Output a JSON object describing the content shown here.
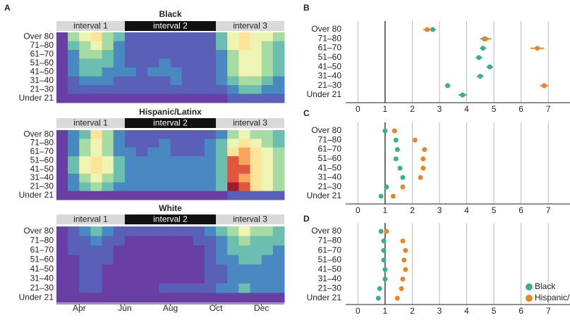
{
  "chart_data": [
    {
      "type": "heatmap",
      "panel": "A",
      "title": "Black",
      "categories": [
        "Over 80",
        "71–80",
        "61–70",
        "51–60",
        "41–50",
        "31–40",
        "21–30",
        "Under 21"
      ],
      "intervals": [
        {
          "label": "interval 1",
          "start": 0,
          "end": 6
        },
        {
          "label": "interval 2",
          "start": 6,
          "end": 14
        },
        {
          "label": "interval 3",
          "start": 14,
          "end": 20
        }
      ],
      "highlight_interval": 1,
      "colorscale": [
        "#6a3fa3",
        "#5a5fb8",
        "#4a88c2",
        "#6cbfb0",
        "#a6dba4",
        "#eef4b2",
        "#fde499",
        "#f8a65d",
        "#e0573d",
        "#9c1b30"
      ],
      "rows": [
        [
          0,
          4,
          5,
          6,
          4,
          3,
          1,
          1,
          1,
          1,
          1,
          1,
          1,
          1,
          3,
          5,
          6,
          5,
          5,
          4
        ],
        [
          0,
          3,
          4,
          5,
          4,
          2,
          1,
          1,
          1,
          1,
          1,
          1,
          1,
          1,
          3,
          5,
          6,
          5,
          4,
          3
        ],
        [
          0,
          2,
          4,
          4,
          3,
          2,
          1,
          1,
          1,
          1,
          1,
          1,
          1,
          1,
          2,
          4,
          5,
          5,
          4,
          3
        ],
        [
          0,
          2,
          3,
          3,
          3,
          2,
          1,
          1,
          1,
          2,
          1,
          1,
          1,
          1,
          2,
          4,
          5,
          5,
          4,
          3
        ],
        [
          0,
          2,
          3,
          3,
          2,
          2,
          2,
          1,
          2,
          2,
          2,
          1,
          1,
          1,
          2,
          4,
          5,
          5,
          4,
          3
        ],
        [
          0,
          1,
          2,
          2,
          2,
          1,
          1,
          1,
          1,
          1,
          2,
          1,
          1,
          1,
          2,
          3,
          4,
          4,
          3,
          2
        ],
        [
          0,
          1,
          1,
          1,
          1,
          1,
          1,
          1,
          1,
          1,
          1,
          1,
          1,
          1,
          1,
          2,
          3,
          3,
          2,
          2
        ],
        [
          0,
          0,
          0,
          0,
          0,
          0,
          0,
          0,
          0,
          0,
          0,
          0,
          0,
          0,
          0,
          1,
          1,
          1,
          1,
          1
        ]
      ]
    },
    {
      "type": "heatmap",
      "title": "Hispanic/Latinx",
      "categories": [
        "Over 80",
        "71–80",
        "61–70",
        "51–60",
        "41–50",
        "31–40",
        "21–30",
        "Under 21"
      ],
      "intervals": [
        {
          "label": "interval 1",
          "start": 0,
          "end": 6
        },
        {
          "label": "interval 2",
          "start": 6,
          "end": 14
        },
        {
          "label": "interval 3",
          "start": 14,
          "end": 20
        }
      ],
      "highlight_interval": 1,
      "colorscale": [
        "#6a3fa3",
        "#5a5fb8",
        "#4a88c2",
        "#6cbfb0",
        "#a6dba4",
        "#eef4b2",
        "#fde499",
        "#f8a65d",
        "#e0573d",
        "#9c1b30"
      ],
      "rows": [
        [
          0,
          2,
          3,
          6,
          4,
          2,
          1,
          1,
          1,
          1,
          1,
          1,
          1,
          1,
          2,
          4,
          5,
          4,
          4,
          3
        ],
        [
          0,
          2,
          4,
          5,
          4,
          2,
          1,
          1,
          1,
          2,
          1,
          1,
          1,
          2,
          3,
          5,
          6,
          5,
          4,
          3
        ],
        [
          0,
          2,
          4,
          5,
          4,
          2,
          2,
          1,
          2,
          2,
          1,
          1,
          1,
          2,
          3,
          6,
          7,
          6,
          5,
          4
        ],
        [
          0,
          3,
          5,
          6,
          5,
          3,
          2,
          2,
          2,
          2,
          2,
          2,
          2,
          2,
          3,
          8,
          7,
          6,
          5,
          4
        ],
        [
          0,
          3,
          5,
          6,
          5,
          3,
          2,
          2,
          2,
          2,
          2,
          2,
          2,
          2,
          3,
          8,
          8,
          6,
          5,
          4
        ],
        [
          0,
          2,
          4,
          5,
          4,
          3,
          2,
          2,
          2,
          2,
          2,
          2,
          2,
          2,
          3,
          8,
          7,
          6,
          5,
          4
        ],
        [
          0,
          2,
          3,
          4,
          3,
          2,
          2,
          2,
          2,
          2,
          2,
          2,
          2,
          2,
          3,
          9,
          8,
          6,
          5,
          4
        ],
        [
          0,
          0,
          0,
          0,
          0,
          0,
          0,
          0,
          0,
          0,
          0,
          0,
          0,
          0,
          0,
          1,
          1,
          1,
          1,
          1
        ]
      ]
    },
    {
      "type": "heatmap",
      "title": "White",
      "categories": [
        "Over 80",
        "71–80",
        "61–70",
        "51–60",
        "41–50",
        "31–40",
        "21–30",
        "Under 21"
      ],
      "intervals": [
        {
          "label": "interval 1",
          "start": 0,
          "end": 6
        },
        {
          "label": "interval 2",
          "start": 6,
          "end": 14
        },
        {
          "label": "interval 3",
          "start": 14,
          "end": 20
        }
      ],
      "highlight_interval": 1,
      "colorscale": [
        "#6a3fa3",
        "#5a5fb8",
        "#4a88c2",
        "#6cbfb0",
        "#a6dba4",
        "#eef4b2",
        "#fde499",
        "#f8a65d",
        "#e0573d",
        "#9c1b30"
      ],
      "xlim": [
        0,
        20
      ],
      "xticks": [
        {
          "value": 2,
          "label": "Apr"
        },
        {
          "value": 6,
          "label": "Jun"
        },
        {
          "value": 10,
          "label": "Aug"
        },
        {
          "value": 14,
          "label": "Oct"
        },
        {
          "value": 18,
          "label": "Dec"
        }
      ],
      "rows": [
        [
          0,
          1,
          2,
          3,
          2,
          1,
          1,
          1,
          1,
          1,
          1,
          1,
          1,
          2,
          3,
          4,
          5,
          4,
          4,
          3
        ],
        [
          0,
          1,
          1,
          2,
          1,
          1,
          0,
          0,
          0,
          0,
          0,
          0,
          1,
          1,
          2,
          3,
          4,
          3,
          3,
          3
        ],
        [
          0,
          1,
          1,
          1,
          1,
          0,
          0,
          0,
          0,
          0,
          0,
          0,
          0,
          1,
          2,
          3,
          3,
          3,
          3,
          2
        ],
        [
          0,
          0,
          1,
          1,
          1,
          0,
          0,
          0,
          0,
          0,
          0,
          0,
          0,
          1,
          2,
          2,
          3,
          3,
          2,
          2
        ],
        [
          0,
          0,
          1,
          1,
          0,
          0,
          0,
          0,
          0,
          0,
          0,
          0,
          0,
          1,
          1,
          2,
          2,
          2,
          2,
          2
        ],
        [
          0,
          0,
          1,
          1,
          0,
          0,
          0,
          0,
          0,
          0,
          0,
          0,
          0,
          1,
          1,
          2,
          2,
          2,
          2,
          2
        ],
        [
          0,
          0,
          1,
          1,
          0,
          0,
          0,
          0,
          0,
          1,
          1,
          1,
          1,
          1,
          2,
          2,
          3,
          2,
          2,
          2
        ],
        [
          0,
          0,
          0,
          0,
          0,
          0,
          0,
          0,
          0,
          0,
          0,
          0,
          0,
          0,
          0,
          0,
          0,
          0,
          0,
          0
        ]
      ]
    },
    {
      "type": "dot",
      "panel": "B",
      "categories": [
        "Over 80",
        "71–80",
        "61–70",
        "51–60",
        "41–50",
        "31–40",
        "21–30",
        "Under 21"
      ],
      "xlim": [
        -0.45,
        7.8
      ],
      "xticks": [
        0,
        1,
        2,
        3,
        4,
        5,
        6,
        7
      ],
      "refline": 1,
      "series": [
        {
          "color": "#3fae8e",
          "values": [
            2.75,
            4.65,
            4.6,
            4.45,
            4.85,
            4.5,
            3.3,
            3.85
          ],
          "errors": [
            0.12,
            0.15,
            0.12,
            0.12,
            0.12,
            0.12,
            0.1,
            0.15
          ]
        },
        {
          "color": "#e5862b",
          "values": [
            2.55,
            4.7,
            6.6,
            null,
            null,
            null,
            6.85,
            null
          ],
          "errors": [
            0.15,
            0.2,
            0.25,
            null,
            null,
            null,
            0.15,
            null
          ]
        }
      ]
    },
    {
      "type": "dot",
      "panel": "C",
      "categories": [
        "Over 80",
        "71–80",
        "61–70",
        "51–60",
        "41–50",
        "31–40",
        "21–30",
        "Under 21"
      ],
      "xlim": [
        -0.45,
        7.8
      ],
      "xticks": [
        0,
        1,
        2,
        3,
        4,
        5,
        6,
        7
      ],
      "refline": 1,
      "series": [
        {
          "color": "#3fae8e",
          "values": [
            1.0,
            1.4,
            1.45,
            1.4,
            1.55,
            1.65,
            1.05,
            0.85
          ]
        },
        {
          "color": "#e5862b",
          "values": [
            1.35,
            2.1,
            2.45,
            2.4,
            2.4,
            2.3,
            1.65,
            1.3
          ]
        }
      ]
    },
    {
      "type": "dot",
      "panel": "D",
      "categories": [
        "Over 80",
        "71–80",
        "61–70",
        "51–60",
        "41–50",
        "31–40",
        "21–30",
        "Under 21"
      ],
      "xlim": [
        -0.45,
        7.8
      ],
      "xticks": [
        0,
        1,
        2,
        3,
        4,
        5,
        6,
        7
      ],
      "refline": 1,
      "legend": "bottom-right",
      "series": [
        {
          "name": "Black",
          "color": "#3fae8e",
          "values": [
            0.85,
            0.95,
            0.95,
            0.95,
            1.0,
            1.0,
            0.8,
            0.75
          ]
        },
        {
          "name": "Hispanic/Latinx",
          "color": "#e5862b",
          "values": [
            1.05,
            1.65,
            1.75,
            1.7,
            1.75,
            1.65,
            1.6,
            1.45
          ]
        }
      ]
    }
  ]
}
